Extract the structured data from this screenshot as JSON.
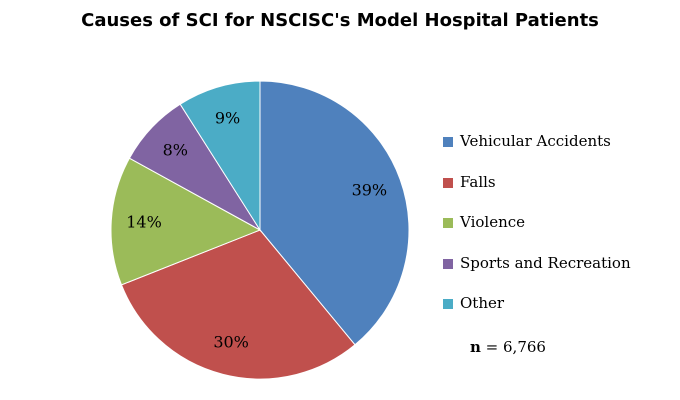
{
  "chart_data": {
    "type": "pie",
    "title": "Causes of SCI for NSCISC's Model Hospital Patients",
    "categories": [
      "Vehicular Accidents",
      "Falls",
      "Violence",
      "Sports and Recreation",
      "Other"
    ],
    "values": [
      39,
      30,
      14,
      8,
      9
    ],
    "labels": [
      "39%",
      "30%",
      "14%",
      "8%",
      "9%"
    ],
    "colors": [
      "#4F81BD",
      "#C0504D",
      "#9BBB59",
      "#8064A2",
      "#4BACC6"
    ],
    "legend_position": "right",
    "note": {
      "symbol": "n",
      "text": " = 6,766"
    }
  }
}
